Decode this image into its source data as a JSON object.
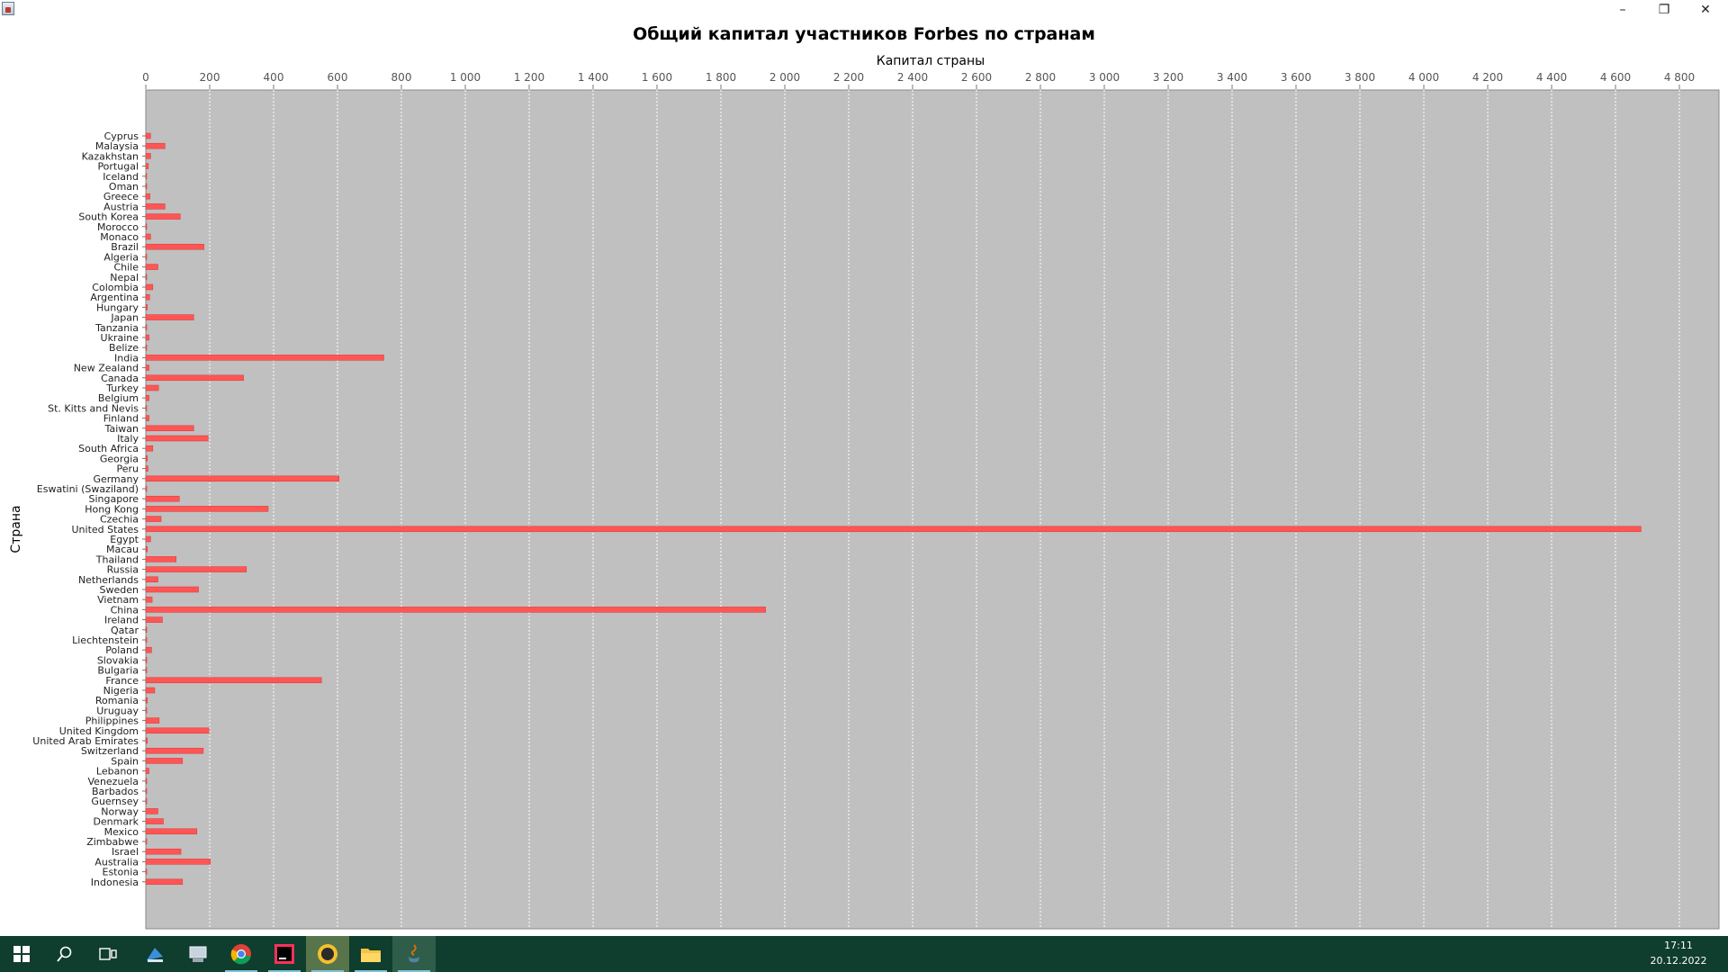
{
  "window": {
    "title": "",
    "controls": {
      "minimize": "–",
      "maximize": "❐",
      "close": "✕"
    }
  },
  "chart_data": {
    "type": "bar",
    "orientation": "horizontal",
    "title": "Общий капитал участников Forbes по странам",
    "xlabel": "Капитал страны",
    "ylabel": "Страна",
    "xlim": [
      0,
      4800
    ],
    "xticks": [
      0,
      200,
      400,
      600,
      800,
      1000,
      1200,
      1400,
      1600,
      1800,
      2000,
      2200,
      2400,
      2600,
      2800,
      3000,
      3200,
      3400,
      3600,
      3800,
      4000,
      4200,
      4400,
      4600,
      4800
    ],
    "xtick_labels": [
      "0",
      "200",
      "400",
      "600",
      "800",
      "1 000",
      "1 200",
      "1 400",
      "1 600",
      "1 800",
      "2 000",
      "2 200",
      "2 400",
      "2 600",
      "2 800",
      "3 000",
      "3 200",
      "3 400",
      "3 600",
      "3 800",
      "4 000",
      "4 200",
      "4 400",
      "4 600",
      "4 800"
    ],
    "x_axis_position": "top",
    "grid": true,
    "legend": "none",
    "colors": {
      "bar": "#ff5555",
      "plot_background": "#c0c0c0",
      "gridline": "#ffffff"
    },
    "categories": [
      "Cyprus",
      "Malaysia",
      "Kazakhstan",
      "Portugal",
      "Iceland",
      "Oman",
      "Greece",
      "Austria",
      "South Korea",
      "Morocco",
      "Monaco",
      "Brazil",
      "Algeria",
      "Chile",
      "Nepal",
      "Colombia",
      "Argentina",
      "Hungary",
      "Japan",
      "Tanzania",
      "Ukraine",
      "Belize",
      "India",
      "New Zealand",
      "Canada",
      "Turkey",
      "Belgium",
      "St. Kitts and Nevis",
      "Finland",
      "Taiwan",
      "Italy",
      "South Africa",
      "Georgia",
      "Peru",
      "Germany",
      "Eswatini (Swaziland)",
      "Singapore",
      "Hong Kong",
      "Czechia",
      "United States",
      "Egypt",
      "Macau",
      "Thailand",
      "Russia",
      "Netherlands",
      "Sweden",
      "Vietnam",
      "China",
      "Ireland",
      "Qatar",
      "Liechtenstein",
      "Poland",
      "Slovakia",
      "Bulgaria",
      "France",
      "Nigeria",
      "Romania",
      "Uruguay",
      "Philippines",
      "United Kingdom",
      "United Arab Emirates",
      "Switzerland",
      "Spain",
      "Lebanon",
      "Venezuela",
      "Barbados",
      "Guernsey",
      "Norway",
      "Denmark",
      "Mexico",
      "Zimbabwe",
      "Israel",
      "Australia",
      "Estonia",
      "Indonesia"
    ],
    "values": [
      15,
      60,
      15,
      8,
      2,
      3,
      13,
      60,
      108,
      3,
      15,
      182,
      3,
      38,
      3,
      22,
      12,
      5,
      150,
      3,
      10,
      3,
      745,
      10,
      306,
      40,
      10,
      2,
      10,
      150,
      195,
      22,
      5,
      7,
      605,
      3,
      105,
      383,
      48,
      4680,
      15,
      5,
      95,
      315,
      38,
      165,
      20,
      1940,
      52,
      3,
      3,
      18,
      3,
      3,
      550,
      28,
      5,
      3,
      42,
      198,
      5,
      180,
      115,
      10,
      3,
      3,
      3,
      38,
      55,
      160,
      3,
      110,
      202,
      3,
      115
    ]
  },
  "taskbar": {
    "items": [
      {
        "name": "start-button",
        "icon": "windows-logo-icon"
      },
      {
        "name": "search-button",
        "icon": "search-icon"
      },
      {
        "name": "task-view-button",
        "icon": "task-view-icon"
      },
      {
        "name": "app-1",
        "icon": "desktop-app-icon"
      },
      {
        "name": "app-2",
        "icon": "computer-app-icon"
      },
      {
        "name": "chrome",
        "icon": "chrome-icon"
      },
      {
        "name": "intellij",
        "icon": "intellij-icon"
      },
      {
        "name": "app-yellow",
        "icon": "yellow-app-icon"
      },
      {
        "name": "file-explorer",
        "icon": "folder-icon"
      },
      {
        "name": "java-app",
        "icon": "java-icon"
      }
    ],
    "clock": {
      "time": "17:11",
      "date": "20.12.2022"
    }
  }
}
